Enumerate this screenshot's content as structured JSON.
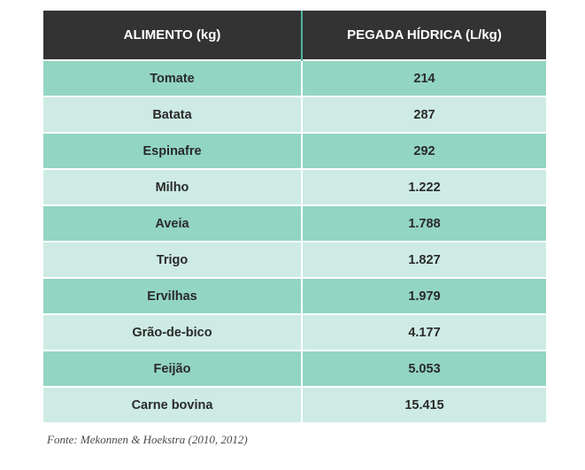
{
  "table": {
    "headers": {
      "food": "ALIMENTO (kg)",
      "footprint": "PEGADA HÍDRICA (L/kg)"
    },
    "rows": [
      {
        "food": "Tomate",
        "footprint": "214"
      },
      {
        "food": "Batata",
        "footprint": "287"
      },
      {
        "food": "Espinafre",
        "footprint": "292"
      },
      {
        "food": "Milho",
        "footprint": "1.222"
      },
      {
        "food": "Aveia",
        "footprint": "1.788"
      },
      {
        "food": "Trigo",
        "footprint": "1.827"
      },
      {
        "food": "Ervilhas",
        "footprint": "1.979"
      },
      {
        "food": "Grão-de-bico",
        "footprint": "4.177"
      },
      {
        "food": "Feijão",
        "footprint": "5.053"
      },
      {
        "food": "Carne bovina",
        "footprint": "15.415"
      }
    ]
  },
  "source": "Fonte: Mekonnen & Hoekstra (2010, 2012)",
  "colors": {
    "header_bg": "#333333",
    "row_dark": "#92d5c3",
    "row_light": "#cdebe4",
    "header_divider": "#4fb3a0"
  }
}
